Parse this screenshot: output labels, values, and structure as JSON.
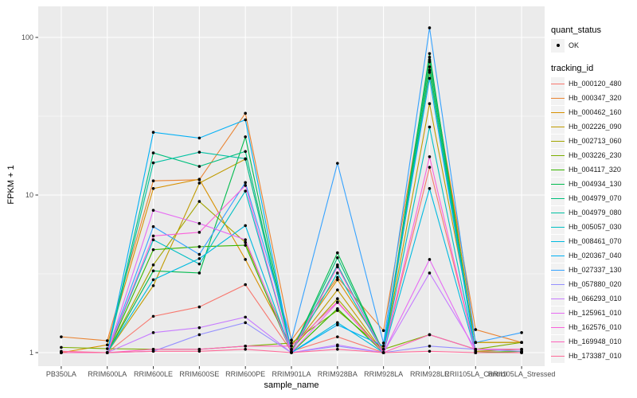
{
  "chart_data": {
    "type": "line",
    "title": "",
    "xlabel": "sample_name",
    "ylabel": "FPKM + 1",
    "y_scale": "log10",
    "y_ticks": [
      1,
      10,
      100
    ],
    "y_minor_ticks": [
      3.1623,
      31.623
    ],
    "ylim": [
      0.95,
      140
    ],
    "grid": "on",
    "legend_position": "right",
    "x_categories": [
      "PB350LA",
      "RRIM600LA",
      "RRIM600LE",
      "RRIM600SE",
      "RRIM600PE",
      "RRIM901LA",
      "RRIM928BA",
      "RRIM928LA",
      "RRIM928LE",
      "RRII105LA_Control",
      "RRII105LA_Stressed"
    ],
    "series": [
      {
        "name": "Hb_000120_480",
        "color": "#F8766D",
        "values": [
          1.0,
          1.0,
          1.7,
          1.95,
          2.7,
          1.02,
          1.26,
          1.0,
          15.0,
          1.02,
          1.0
        ]
      },
      {
        "name": "Hb_000347_320",
        "color": "#EA8331",
        "values": [
          1.26,
          1.19,
          12.3,
          12.5,
          33.0,
          1.2,
          3.0,
          1.38,
          70.0,
          1.4,
          1.16
        ]
      },
      {
        "name": "Hb_000462_160",
        "color": "#D89000",
        "values": [
          1.0,
          1.12,
          11.0,
          12.6,
          3.9,
          1.1,
          2.9,
          1.05,
          75.0,
          1.16,
          1.16
        ]
      },
      {
        "name": "Hb_002226_090",
        "color": "#C09B00",
        "values": [
          1.0,
          1.0,
          2.66,
          11.9,
          16.9,
          1.05,
          2.5,
          1.0,
          38.0,
          1.16,
          1.16
        ]
      },
      {
        "name": "Hb_002713_060",
        "color": "#A3A500",
        "values": [
          1.0,
          1.0,
          3.6,
          9.1,
          5.0,
          1.05,
          2.2,
          1.0,
          60.0,
          1.02,
          1.05
        ]
      },
      {
        "name": "Hb_003226_230",
        "color": "#7CAE00",
        "values": [
          1.08,
          1.06,
          1.05,
          1.05,
          1.1,
          1.15,
          1.85,
          1.05,
          1.3,
          1.05,
          1.16
        ]
      },
      {
        "name": "Hb_004117_320",
        "color": "#39B600",
        "values": [
          1.0,
          1.0,
          4.5,
          4.7,
          4.8,
          1.0,
          1.9,
          1.0,
          65.0,
          1.0,
          1.02
        ]
      },
      {
        "name": "Hb_004934_130",
        "color": "#00BB4E",
        "values": [
          1.0,
          1.0,
          3.3,
          3.2,
          23.4,
          1.0,
          4.3,
          1.0,
          79.0,
          1.0,
          1.0
        ]
      },
      {
        "name": "Hb_004979_070",
        "color": "#00BF7D",
        "values": [
          1.0,
          1.0,
          18.5,
          15.2,
          18.9,
          1.0,
          4.0,
          1.0,
          72.0,
          1.0,
          1.0
        ]
      },
      {
        "name": "Hb_004979_080",
        "color": "#00C1A3",
        "values": [
          1.0,
          1.0,
          16.0,
          18.7,
          17.0,
          1.0,
          3.6,
          1.0,
          62.0,
          1.0,
          1.0
        ]
      },
      {
        "name": "Hb_005057_030",
        "color": "#00BFC4",
        "values": [
          1.0,
          1.0,
          5.2,
          3.65,
          10.6,
          1.0,
          3.2,
          1.0,
          27.0,
          1.0,
          1.0
        ]
      },
      {
        "name": "Hb_008461_070",
        "color": "#00BAE0",
        "values": [
          1.0,
          1.0,
          2.9,
          3.95,
          6.4,
          1.0,
          1.55,
          1.0,
          11.0,
          1.0,
          1.0
        ]
      },
      {
        "name": "Hb_020367_040",
        "color": "#00B0F6",
        "values": [
          1.0,
          1.0,
          25.0,
          23.0,
          30.0,
          1.0,
          1.5,
          1.1,
          55.0,
          1.0,
          1.0
        ]
      },
      {
        "name": "Hb_027337_130",
        "color": "#35A2FF",
        "values": [
          1.0,
          1.0,
          6.3,
          4.2,
          12.0,
          1.2,
          15.9,
          1.15,
          115.0,
          1.16,
          1.34
        ]
      },
      {
        "name": "Hb_057880_020",
        "color": "#9590FF",
        "values": [
          1.0,
          1.0,
          1.02,
          1.3,
          1.55,
          1.0,
          1.1,
          1.0,
          1.1,
          1.05,
          1.02
        ]
      },
      {
        "name": "Hb_066293_010",
        "color": "#C77CFF",
        "values": [
          1.0,
          1.0,
          1.34,
          1.44,
          1.68,
          1.0,
          1.12,
          1.0,
          3.2,
          1.05,
          1.05
        ]
      },
      {
        "name": "Hb_125961_010",
        "color": "#E76BF3",
        "values": [
          1.0,
          1.0,
          8.0,
          6.6,
          5.2,
          1.0,
          2.08,
          1.0,
          3.9,
          1.0,
          1.0
        ]
      },
      {
        "name": "Hb_162576_010",
        "color": "#FA62DB",
        "values": [
          1.0,
          1.0,
          5.5,
          5.8,
          11.5,
          1.0,
          3.5,
          1.0,
          17.5,
          1.0,
          1.0
        ]
      },
      {
        "name": "Hb_169948_010",
        "color": "#FF62BC",
        "values": [
          1.0,
          1.0,
          1.05,
          1.05,
          1.1,
          1.1,
          2.1,
          1.0,
          1.3,
          1.05,
          1.05
        ]
      },
      {
        "name": "Hb_173387_010",
        "color": "#FF6A98",
        "values": [
          1.02,
          1.0,
          1.02,
          1.02,
          1.05,
          1.0,
          1.05,
          1.0,
          1.02,
          1.0,
          1.0
        ]
      }
    ]
  },
  "legend": {
    "quant_status": {
      "title": "quant_status",
      "items": [
        {
          "label": "OK",
          "marker": "black-point"
        }
      ]
    },
    "tracking_id": {
      "title": "tracking_id"
    }
  },
  "style": {
    "panel_bg": "#EBEBEB",
    "grid_color": "#FFFFFF",
    "tick_text_color": "#4D4D4D",
    "axis_title_color": "#000000",
    "legend_key_bg": "#F2F2F2",
    "point_color": "#000000",
    "tick_mark_color": "#333333"
  }
}
